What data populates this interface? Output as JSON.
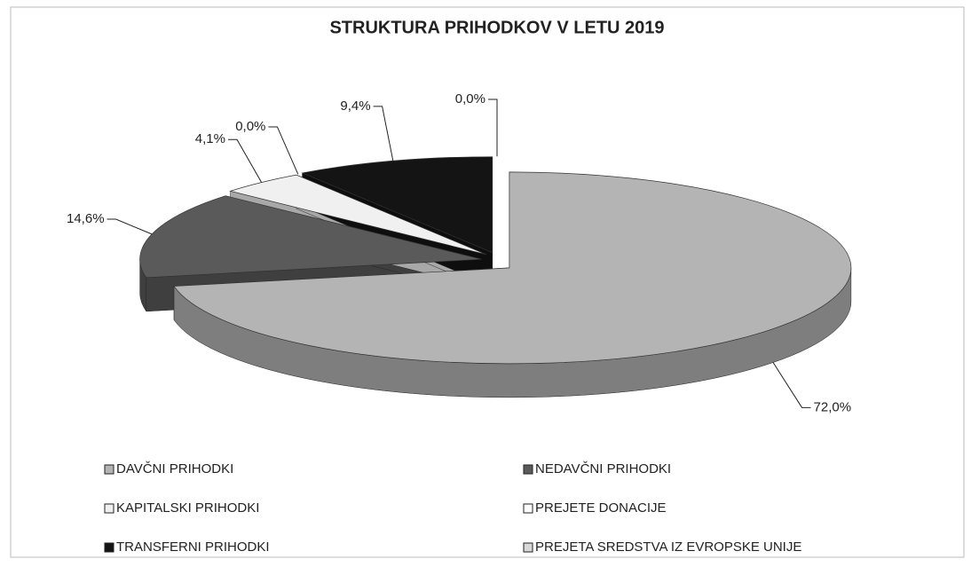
{
  "chart_data": {
    "type": "pie",
    "title": "STRUKTURA PRIHODKOV V LETU 2019",
    "categories": [
      "DAVČNI PRIHODKI",
      "NEDAVČNI PRIHODKI",
      "KAPITALSKI PRIHODKI",
      "PREJETE DONACIJE",
      "TRANSFERNI PRIHODKI",
      "PREJETA SREDSTVA IZ EVROPSKE UNIJE"
    ],
    "values": [
      72.0,
      14.6,
      4.1,
      0.0,
      9.4,
      0.0
    ],
    "value_labels": [
      "72,0%",
      "14,6%",
      "4,1%",
      "0,0%",
      "9,4%",
      "0,0%"
    ],
    "colors": [
      "#b4b4b4",
      "#5a5a5a",
      "#f0f0f0",
      "#ffffff",
      "#141414",
      "#d8d8d8"
    ]
  }
}
